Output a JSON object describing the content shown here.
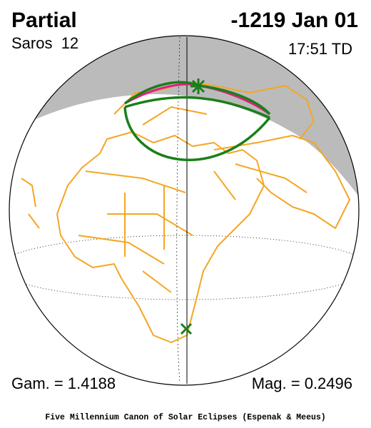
{
  "header": {
    "title": "Partial",
    "date": "-1219 Jan 01",
    "saros": "Saros  12",
    "time": "17:51 TD"
  },
  "footer": {
    "gamma": "Gam. = 1.4188",
    "magnitude": "Mag. = 0.2496",
    "credit": "Five Millennium Canon of Solar Eclipses (Espenak & Meeus)"
  }
}
